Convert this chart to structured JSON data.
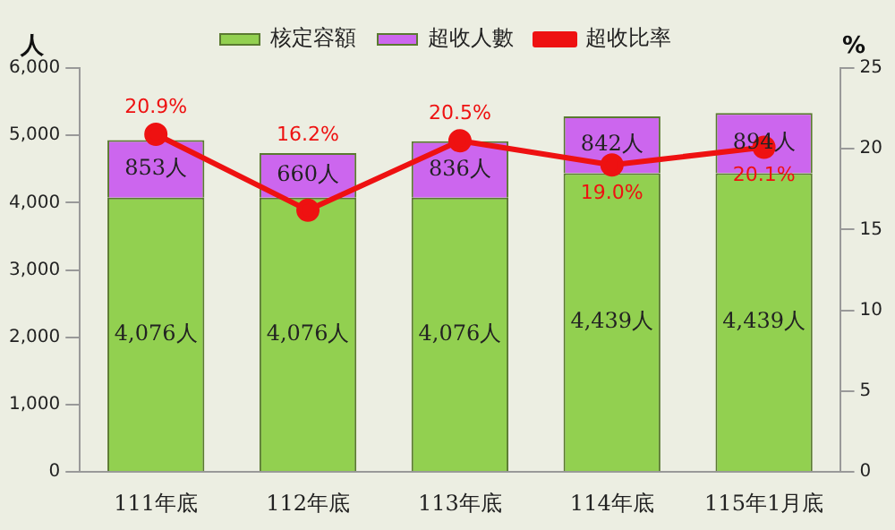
{
  "chart_data": {
    "type": "bar",
    "stacked": true,
    "ylabel": "人",
    "y2label": "%",
    "categories": [
      "111年底",
      "112年底",
      "113年底",
      "114年底",
      "115年1月底"
    ],
    "series": [
      {
        "name": "核定容額",
        "color": "#92d050",
        "values": [
          4076,
          4076,
          4076,
          4439,
          4439
        ],
        "value_labels": [
          "4,076人",
          "4,076人",
          "4,076人",
          "4,439人",
          "4,439人"
        ]
      },
      {
        "name": "超收人數",
        "color": "#cc66ee",
        "values": [
          853,
          660,
          836,
          842,
          894
        ],
        "value_labels": [
          "853人",
          "660人",
          "836人",
          "842人",
          "894人"
        ]
      },
      {
        "name": "超收比率",
        "type": "line",
        "axis": "y2",
        "color": "#ee1111",
        "marker": "circle",
        "values": [
          20.9,
          16.2,
          20.5,
          19.0,
          20.1
        ],
        "value_labels": [
          "20.9%",
          "16.2%",
          "20.5%",
          "19.0%",
          "20.1%"
        ]
      }
    ],
    "ylim": [
      0,
      6000
    ],
    "yticks": [
      {
        "value": 0,
        "label": "0"
      },
      {
        "value": 1000,
        "label": "1,000"
      },
      {
        "value": 2000,
        "label": "2,000"
      },
      {
        "value": 3000,
        "label": "3,000"
      },
      {
        "value": 4000,
        "label": "4,000"
      },
      {
        "value": 5000,
        "label": "5,000"
      },
      {
        "value": 6000,
        "label": "6,000"
      }
    ],
    "y2lim": [
      0,
      25
    ],
    "y2ticks": [
      0,
      5,
      10,
      15,
      20,
      25
    ],
    "grid": false,
    "legend": "top"
  }
}
